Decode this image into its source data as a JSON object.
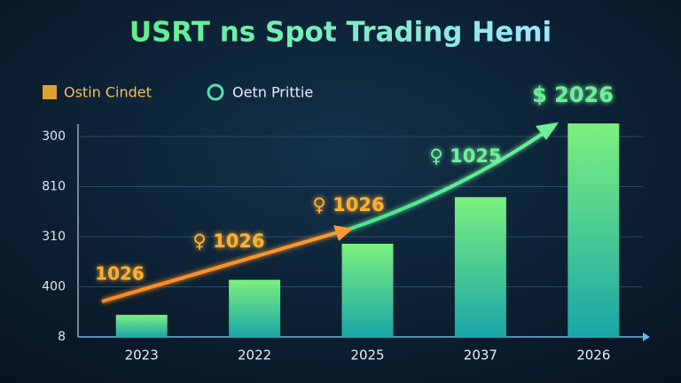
{
  "chart_data": {
    "type": "bar",
    "title": "USRT ns Spot Trading Hemi",
    "legend": [
      "Ostin Cindet",
      "Oetn Prittie"
    ],
    "categories": [
      "2023",
      "2022",
      "2025",
      "2037",
      "2026"
    ],
    "values": [
      0.44,
      1.14,
      1.86,
      2.79,
      4.26
    ],
    "ylim": [
      0,
      4.3
    ],
    "yticks": [
      {
        "value": 0,
        "label": "8"
      },
      {
        "value": 1,
        "label": "400"
      },
      {
        "value": 2,
        "label": "310"
      },
      {
        "value": 3,
        "label": "810"
      },
      {
        "value": 4,
        "label": "300"
      }
    ],
    "grid": true,
    "annotations": [
      "1026",
      "♀ 1026",
      "♀ 1026",
      "♀ 1025",
      "$ 2026"
    ]
  }
}
